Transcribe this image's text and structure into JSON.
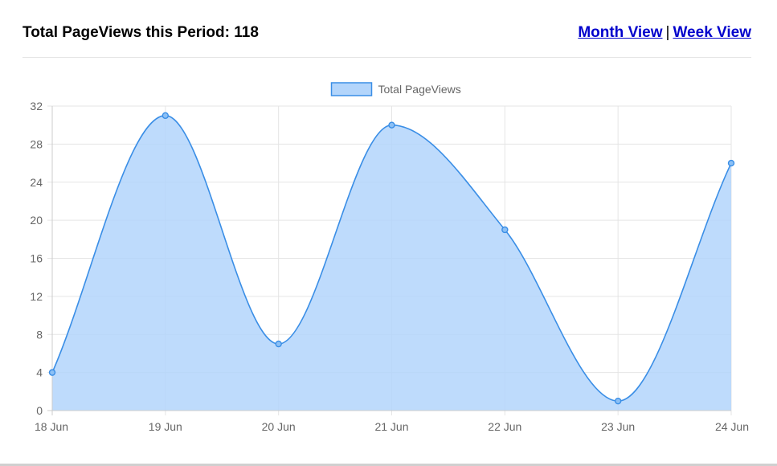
{
  "header": {
    "title": "Total PageViews this Period: 118",
    "month_view": "Month View",
    "separator": "|",
    "week_view": "Week View"
  },
  "colors": {
    "line": "#3a8ee6",
    "fill": "#b3d5fb",
    "grid": "#e5e5e5"
  },
  "chart_data": {
    "type": "area",
    "x": [
      "18 Jun",
      "19 Jun",
      "20 Jun",
      "21 Jun",
      "22 Jun",
      "23 Jun",
      "24 Jun"
    ],
    "series": [
      {
        "name": "Total PageViews",
        "values": [
          4,
          31,
          7,
          30,
          19,
          1,
          26
        ]
      }
    ],
    "ylim": [
      0,
      32
    ],
    "yticks": [
      0,
      4,
      8,
      12,
      16,
      20,
      24,
      28,
      32
    ],
    "grid": true,
    "legend": "top-center",
    "smooth": true
  }
}
